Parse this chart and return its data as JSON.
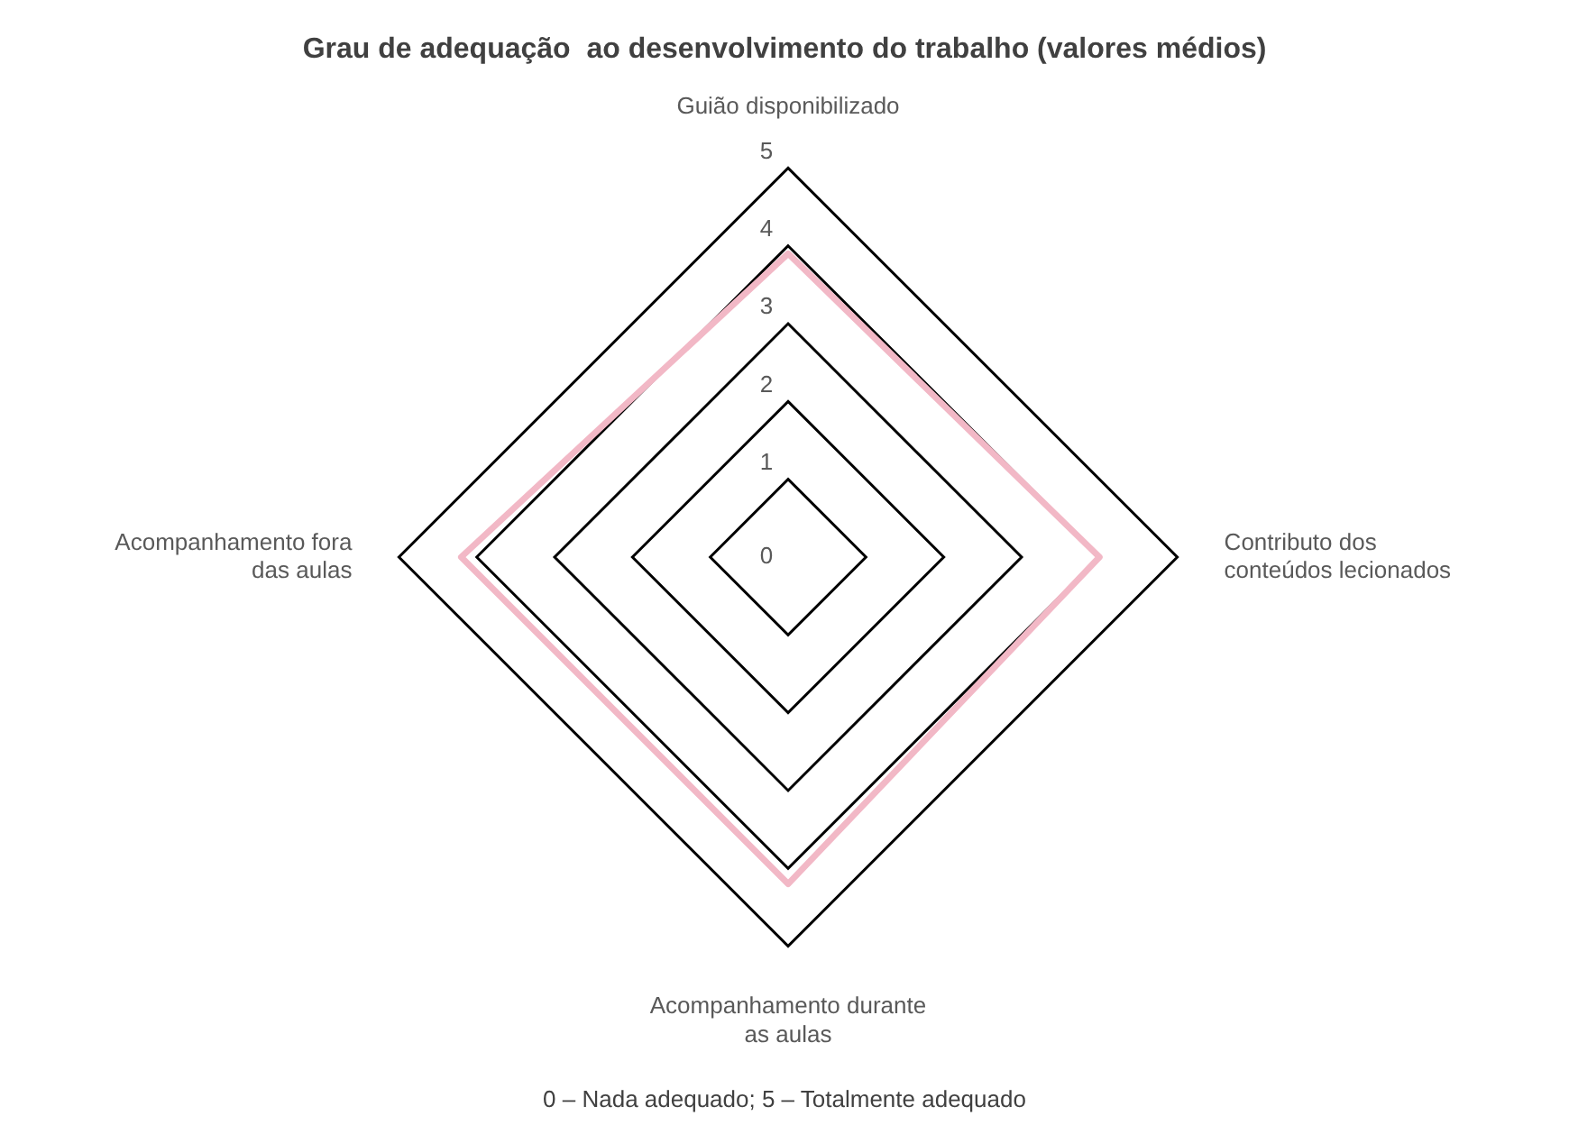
{
  "chart_data": {
    "type": "radar",
    "title": "Grau de adequação  ao desenvolvimento do trabalho (valores médios)",
    "categories": [
      "Guião disponibilizado",
      "Contributo dos conteúdos lecionados",
      "Acompanhamento durante as aulas",
      "Acompanhamento fora das aulas"
    ],
    "series": [
      {
        "color": "#f2b8c6",
        "values": [
          3.9,
          4.0,
          4.2,
          4.2
        ]
      }
    ],
    "ylim": [
      0,
      5
    ],
    "yticks": [
      0,
      1,
      2,
      3,
      4,
      5
    ],
    "grid": true,
    "legend": false,
    "marker": "none",
    "annotations": [
      "0 – Nada adequado; 5 – Totalmente adequado"
    ]
  }
}
